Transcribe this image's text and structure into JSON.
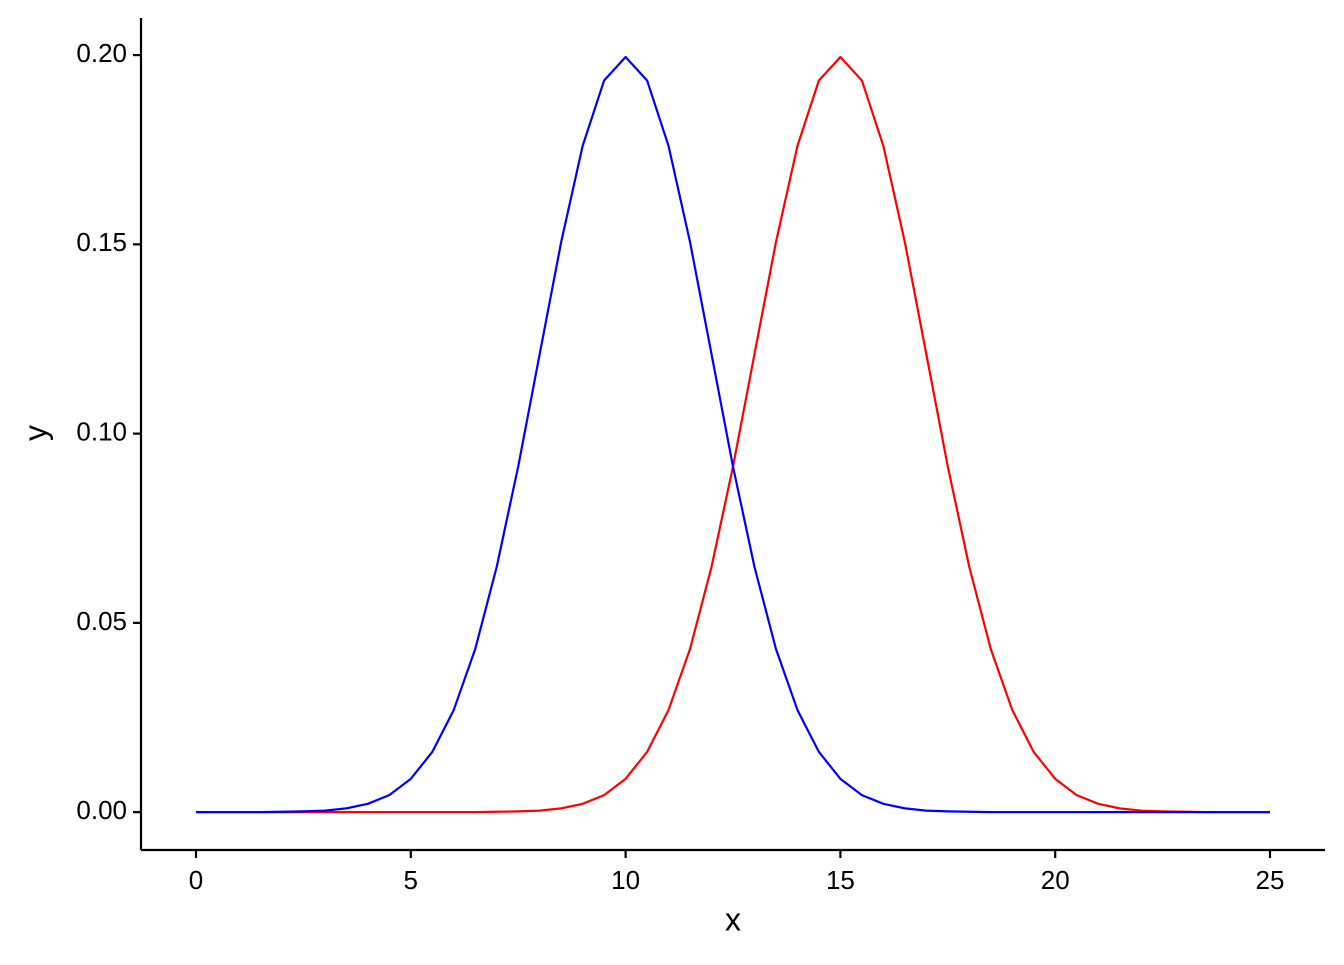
{
  "chart_data": {
    "type": "line",
    "x_label": "x",
    "y_label": "y",
    "x": [
      0,
      0.5,
      1,
      1.5,
      2,
      2.5,
      3,
      3.5,
      4,
      4.5,
      5,
      5.5,
      6,
      6.5,
      7,
      7.5,
      8,
      8.5,
      9,
      9.5,
      10,
      10.5,
      11,
      11.5,
      12,
      12.5,
      13,
      13.5,
      14,
      14.5,
      15,
      15.5,
      16,
      16.5,
      17,
      17.5,
      18,
      18.5,
      19,
      19.5,
      20,
      20.5,
      21,
      21.5,
      22,
      22.5,
      23,
      23.5,
      24,
      24.5,
      25
    ],
    "series": [
      {
        "color": "#ff0000",
        "values": [
          0,
          0,
          0,
          0,
          0,
          0,
          0,
          0,
          0,
          0,
          0,
          0,
          0,
          0,
          0.0001,
          0.0002,
          0.0004,
          0.001,
          0.0022,
          0.0045,
          0.0088,
          0.0159,
          0.027,
          0.0431,
          0.0648,
          0.0913,
          0.121,
          0.1506,
          0.176,
          0.1933,
          0.1995,
          0.1933,
          0.176,
          0.1506,
          0.121,
          0.0913,
          0.0648,
          0.0431,
          0.027,
          0.0159,
          0.0088,
          0.0045,
          0.0022,
          0.001,
          0.0004,
          0.0002,
          0.0001,
          0,
          0,
          0,
          0
        ]
      },
      {
        "color": "#0000ff",
        "values": [
          0,
          0,
          0,
          0,
          0.0001,
          0.0002,
          0.0004,
          0.001,
          0.0022,
          0.0045,
          0.0088,
          0.0159,
          0.027,
          0.0431,
          0.0648,
          0.0913,
          0.121,
          0.1506,
          0.176,
          0.1933,
          0.1995,
          0.1933,
          0.176,
          0.1506,
          0.121,
          0.0913,
          0.0648,
          0.0431,
          0.027,
          0.0159,
          0.0088,
          0.0045,
          0.0022,
          0.001,
          0.0004,
          0.0002,
          0.0001,
          0,
          0,
          0,
          0,
          0,
          0,
          0,
          0,
          0,
          0,
          0,
          0,
          0,
          0
        ]
      }
    ],
    "xlim": [
      -1.28,
      26.28
    ],
    "xticks": [
      0,
      5,
      10,
      15,
      20,
      25
    ],
    "ylim": [
      -0.01,
      0.2098
    ],
    "yticks": [
      {
        "value": 0,
        "label": "0.00"
      },
      {
        "value": 0.05,
        "label": "0.05"
      },
      {
        "value": 0.1,
        "label": "0.10"
      },
      {
        "value": 0.15,
        "label": "0.15"
      },
      {
        "value": 0.2,
        "label": "0.20"
      }
    ],
    "grid": false
  }
}
